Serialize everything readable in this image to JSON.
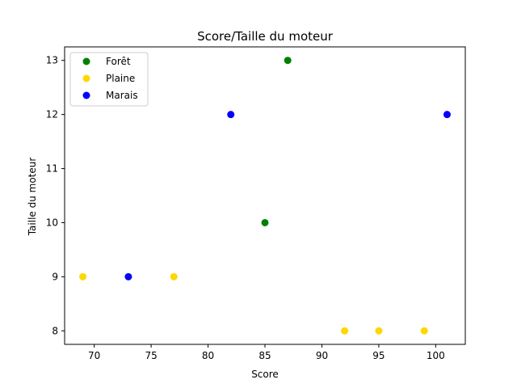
{
  "chart_data": {
    "type": "scatter",
    "title": "Score/Taille du moteur",
    "xlabel": "Score",
    "ylabel": "Taille du moteur",
    "xlim": [
      67.4,
      102.6
    ],
    "ylim": [
      7.75,
      13.25
    ],
    "xticks": [
      70,
      75,
      80,
      85,
      90,
      95,
      100
    ],
    "yticks": [
      8,
      9,
      10,
      11,
      12,
      13
    ],
    "grid": false,
    "legend_position": "top-left",
    "series": [
      {
        "name": "Forêt",
        "color": "#008000",
        "points": [
          [
            87,
            13
          ],
          [
            85,
            10
          ]
        ]
      },
      {
        "name": "Plaine",
        "color": "#ffd700",
        "points": [
          [
            69,
            9
          ],
          [
            77,
            9
          ],
          [
            92,
            8
          ],
          [
            95,
            8
          ],
          [
            99,
            8
          ]
        ]
      },
      {
        "name": "Marais",
        "color": "#0000ff",
        "points": [
          [
            82,
            12
          ],
          [
            73,
            9
          ],
          [
            101,
            12
          ]
        ]
      }
    ]
  }
}
